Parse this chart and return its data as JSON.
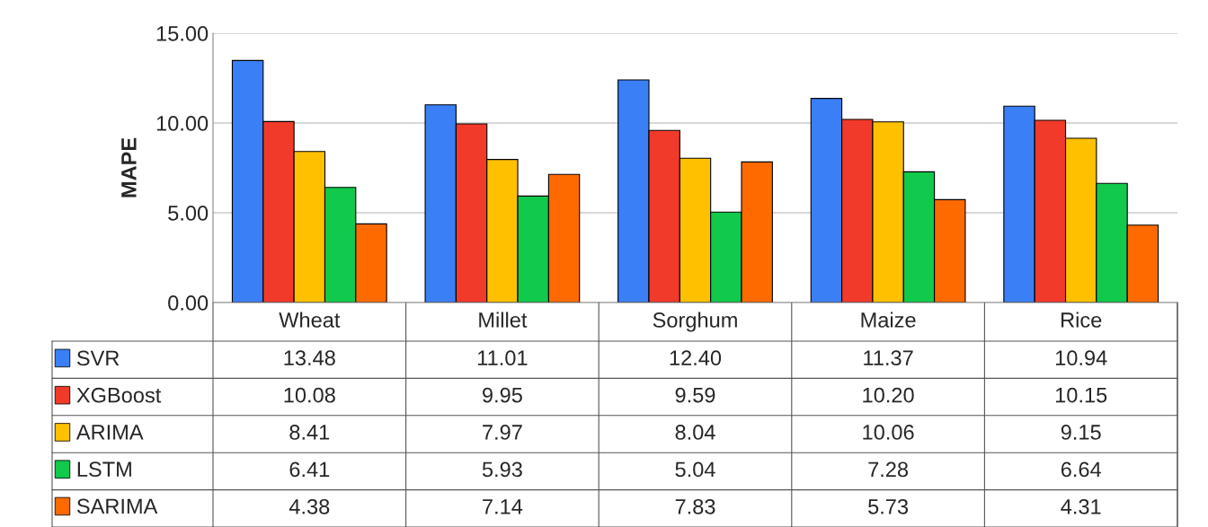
{
  "chart_data": {
    "type": "bar",
    "ylabel": "MAPE",
    "categories": [
      "Wheat",
      "Millet",
      "Sorghum",
      "Maize",
      "Rice"
    ],
    "series": [
      {
        "name": "SVR",
        "color": "#3a7ff6",
        "values": [
          13.48,
          11.01,
          12.4,
          11.37,
          10.94
        ],
        "value_labels": [
          "13.48",
          "11.01",
          "12.40",
          "11.37",
          "10.94"
        ]
      },
      {
        "name": "XGBoost",
        "color": "#f23a2a",
        "values": [
          10.08,
          9.95,
          9.59,
          10.2,
          10.15
        ],
        "value_labels": [
          "10.08",
          "9.95",
          "9.59",
          "10.20",
          "10.15"
        ]
      },
      {
        "name": "ARIMA",
        "color": "#ffc000",
        "values": [
          8.41,
          7.97,
          8.04,
          10.06,
          9.15
        ],
        "value_labels": [
          "8.41",
          "7.97",
          "8.04",
          "10.06",
          "9.15"
        ]
      },
      {
        "name": "LSTM",
        "color": "#11c94a",
        "values": [
          6.41,
          5.93,
          5.04,
          7.28,
          6.64
        ],
        "value_labels": [
          "6.41",
          "5.93",
          "5.04",
          "7.28",
          "6.64"
        ]
      },
      {
        "name": "SARIMA",
        "color": "#ff6a00",
        "values": [
          4.38,
          7.14,
          7.83,
          5.73,
          4.31
        ],
        "value_labels": [
          "4.38",
          "7.14",
          "7.83",
          "5.73",
          "4.31"
        ]
      }
    ],
    "ylim": [
      0,
      15
    ],
    "yticks": [
      {
        "value": 0,
        "label": "0.00"
      },
      {
        "value": 5,
        "label": "5.00"
      },
      {
        "value": 10,
        "label": "10.00"
      },
      {
        "value": 15,
        "label": "15.00"
      }
    ],
    "grid": "y",
    "legend": "bottom"
  }
}
